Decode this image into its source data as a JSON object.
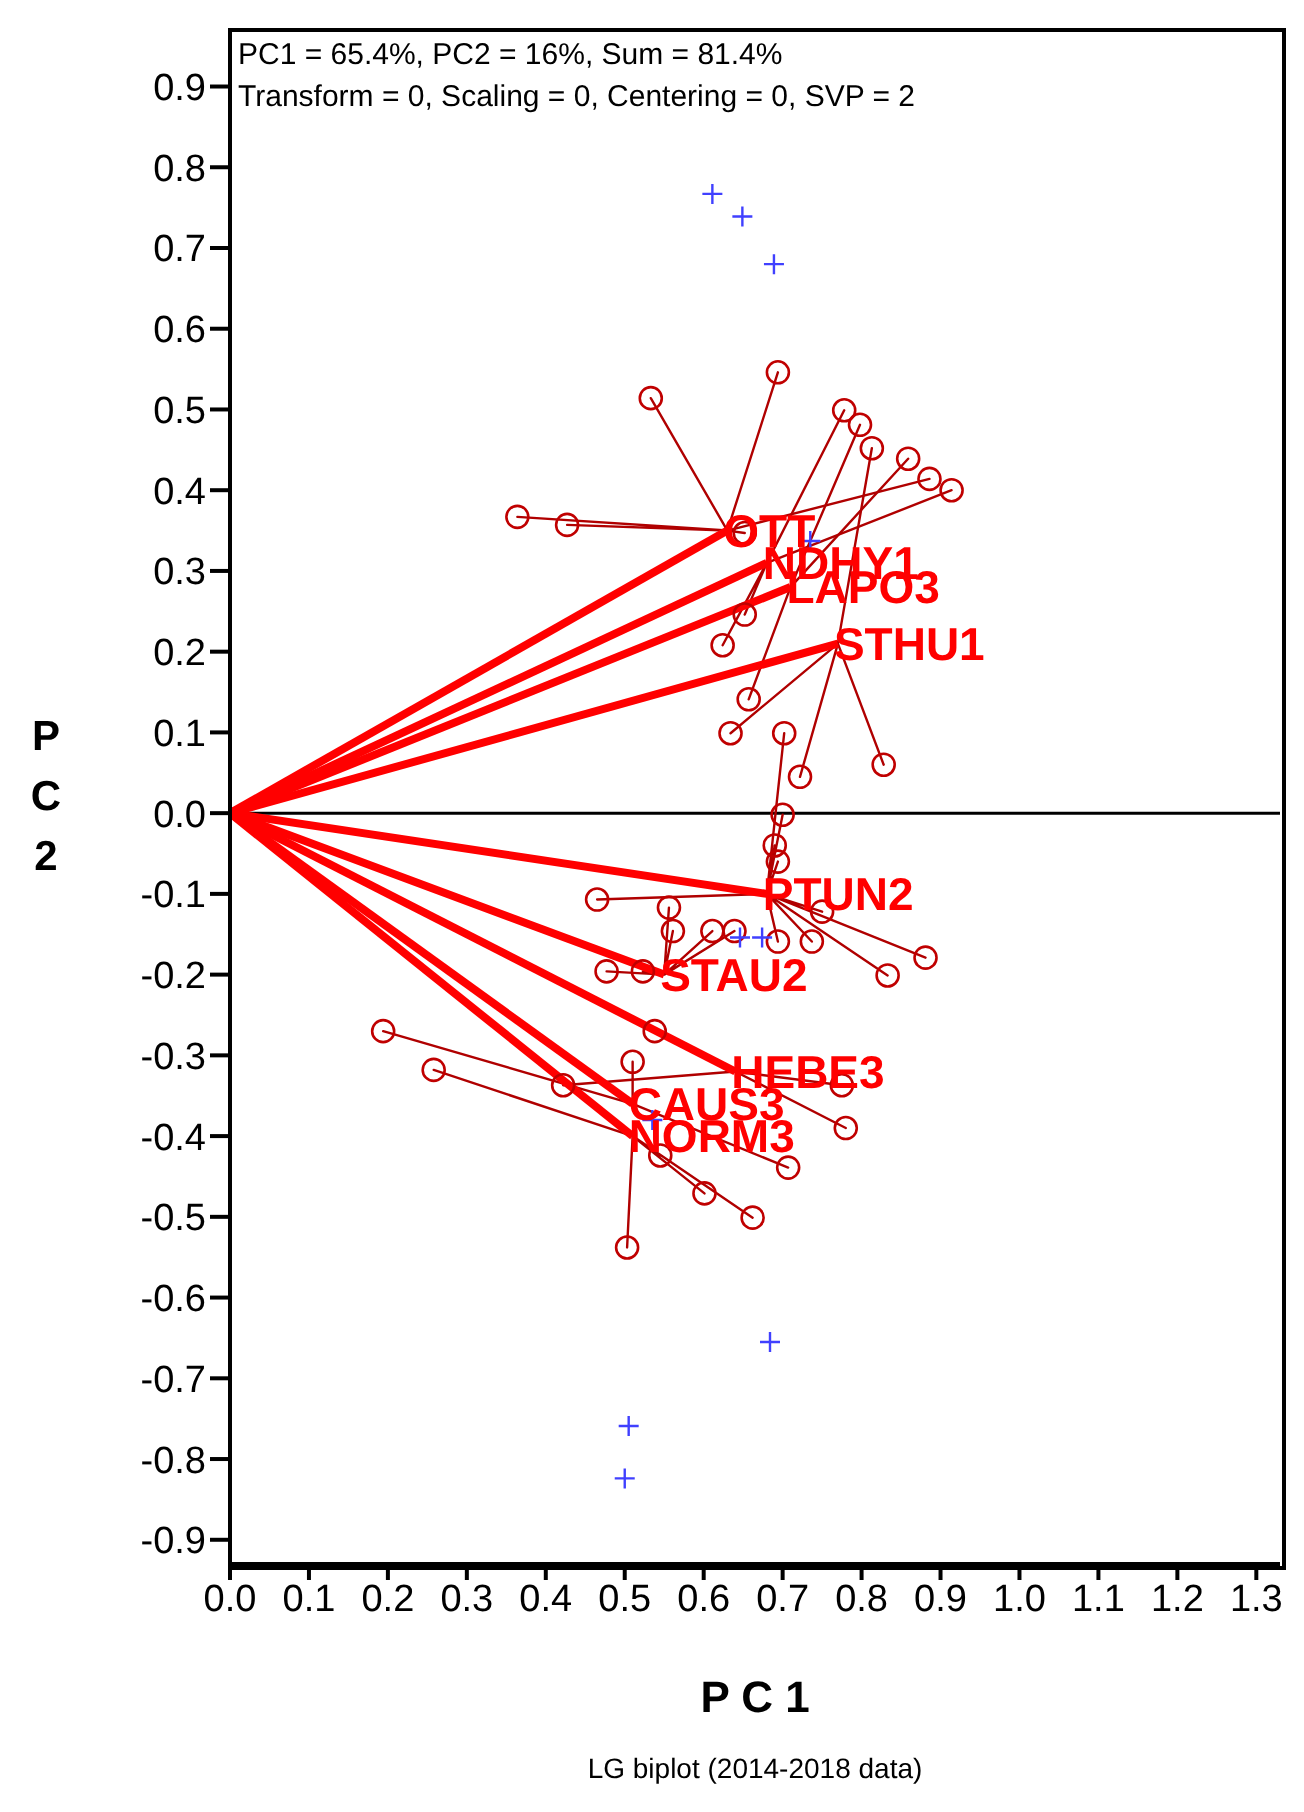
{
  "chart_data": {
    "type": "scatter",
    "xlabel": "P C 1",
    "ylabel": "P C 2",
    "xlim": [
      0,
      1.33
    ],
    "ylim": [
      -0.93,
      0.97
    ],
    "xticks": [
      {
        "value": 0,
        "label": "0.0"
      },
      0.1,
      0.2,
      0.3,
      0.4,
      0.5,
      0.6,
      0.7,
      0.8,
      0.9,
      {
        "value": 1,
        "label": "1.0"
      },
      1.1,
      1.2,
      1.3
    ],
    "yticks": [
      -0.9,
      -0.8,
      -0.7,
      -0.6,
      -0.5,
      -0.4,
      -0.3,
      -0.2,
      -0.1,
      {
        "value": 0,
        "label": "0.0"
      },
      0.1,
      0.2,
      0.3,
      0.4,
      0.5,
      0.6,
      0.7,
      0.8,
      0.9
    ],
    "grid": false,
    "legend": false,
    "ref_lines": [
      {
        "axis": "y",
        "value": 0,
        "color": "#000000"
      }
    ],
    "series": [
      {
        "type": "line",
        "color": "#b00000",
        "x": [
          0.63,
          0.694,
          0.63,
          0.533,
          0.63,
          0.364,
          0.63,
          0.427,
          0.63,
          0.652,
          0.63,
          0.886
        ],
        "values": [
          0.35,
          0.546,
          0.35,
          0.514,
          0.35,
          0.367,
          0.35,
          0.357,
          0.35,
          0.347,
          0.35,
          0.414
        ]
      },
      {
        "type": "line",
        "color": "#b00000",
        "x": [
          0.68,
          0.778,
          0.68,
          0.624,
          0.68,
          0.652,
          0.68,
          0.914
        ],
        "values": [
          0.31,
          0.499,
          0.31,
          0.208,
          0.31,
          0.246,
          0.31,
          0.4
        ]
      },
      {
        "type": "line",
        "color": "#b00000",
        "x": [
          0.71,
          0.798,
          0.71,
          0.859,
          0.71,
          0.657
        ],
        "values": [
          0.28,
          0.481,
          0.28,
          0.439,
          0.28,
          0.141
        ]
      },
      {
        "type": "line",
        "color": "#b00000",
        "x": [
          0.77,
          0.813,
          0.77,
          0.634,
          0.77,
          0.722,
          0.77,
          0.828
        ],
        "values": [
          0.21,
          0.452,
          0.21,
          0.099,
          0.21,
          0.045,
          0.21,
          0.06
        ]
      },
      {
        "type": "line",
        "color": "#b00000",
        "x": [
          0.68,
          0.702,
          0.68,
          0.7,
          0.68,
          0.69,
          0.68,
          0.694,
          0.68,
          0.833,
          0.68,
          0.881,
          0.68,
          0.75,
          0.68,
          0.737,
          0.68,
          0.465,
          0.68,
          0.694
        ],
        "values": [
          -0.1,
          0.099,
          -0.1,
          -0.002,
          -0.1,
          -0.04,
          -0.1,
          -0.06,
          -0.1,
          -0.201,
          -0.1,
          -0.179,
          -0.1,
          -0.122,
          -0.1,
          -0.159,
          -0.1,
          -0.107,
          -0.1,
          -0.159
        ]
      },
      {
        "type": "line",
        "color": "#b00000",
        "x": [
          0.55,
          0.556,
          0.55,
          0.561,
          0.55,
          0.611,
          0.55,
          0.639,
          0.55,
          0.477,
          0.55,
          0.523
        ],
        "values": [
          -0.2,
          -0.117,
          -0.2,
          -0.146,
          -0.2,
          -0.146,
          -0.2,
          -0.146,
          -0.2,
          -0.196,
          -0.2,
          -0.196
        ]
      },
      {
        "type": "line",
        "color": "#b00000",
        "x": [
          0.64,
          0.538,
          0.64,
          0.775,
          0.64,
          0.78,
          0.64,
          0.422
        ],
        "values": [
          -0.32,
          -0.27,
          -0.32,
          -0.337,
          -0.32,
          -0.39,
          -0.32,
          -0.337
        ]
      },
      {
        "type": "line",
        "color": "#b00000",
        "x": [
          0.51,
          0.194,
          0.51,
          0.51,
          0.51,
          0.707
        ],
        "values": [
          -0.36,
          -0.27,
          -0.36,
          -0.308,
          -0.36,
          -0.439
        ]
      },
      {
        "type": "line",
        "color": "#b00000",
        "x": [
          0.51,
          0.545,
          0.51,
          0.258,
          0.51,
          0.601,
          0.51,
          0.662,
          0.51,
          0.503
        ],
        "values": [
          -0.4,
          -0.424,
          -0.4,
          -0.318,
          -0.4,
          -0.471,
          -0.4,
          -0.501,
          -0.4,
          -0.538
        ]
      },
      {
        "type": "line",
        "color": "#ff0000",
        "x": [
          0,
          0.63
        ],
        "values": [
          0,
          0.35
        ]
      },
      {
        "type": "line",
        "color": "#ff0000",
        "x": [
          0,
          0.68
        ],
        "values": [
          0,
          0.31
        ]
      },
      {
        "type": "line",
        "color": "#ff0000",
        "x": [
          0,
          0.71
        ],
        "values": [
          0,
          0.28
        ]
      },
      {
        "type": "line",
        "color": "#ff0000",
        "x": [
          0,
          0.77
        ],
        "values": [
          0,
          0.21
        ]
      },
      {
        "type": "line",
        "color": "#ff0000",
        "x": [
          0,
          0.68
        ],
        "values": [
          0,
          -0.1
        ]
      },
      {
        "type": "line",
        "color": "#ff0000",
        "x": [
          0,
          0.55
        ],
        "values": [
          0,
          -0.2
        ]
      },
      {
        "type": "line",
        "color": "#ff0000",
        "x": [
          0,
          0.64
        ],
        "values": [
          0,
          -0.32
        ]
      },
      {
        "type": "line",
        "color": "#ff0000",
        "x": [
          0,
          0.51
        ],
        "values": [
          0,
          -0.36
        ]
      },
      {
        "type": "line",
        "color": "#ff0000",
        "x": [
          0,
          0.51
        ],
        "values": [
          0,
          -0.4
        ]
      },
      {
        "marker": "circle",
        "color": "#c00000",
        "x": [
          0.694,
          0.533,
          0.778,
          0.798,
          0.813,
          0.859,
          0.886,
          0.914,
          0.364,
          0.427,
          0.652,
          0.652,
          0.624,
          0.657,
          0.634,
          0.702,
          0.722,
          0.828,
          0.7,
          0.69,
          0.694,
          0.465,
          0.556,
          0.561,
          0.611,
          0.639,
          0.694,
          0.737,
          0.75,
          0.833,
          0.881,
          0.477,
          0.523,
          0.538,
          0.194,
          0.258,
          0.422,
          0.51,
          0.775,
          0.78,
          0.707,
          0.545,
          0.601,
          0.662,
          0.503
        ],
        "values": [
          0.546,
          0.514,
          0.499,
          0.481,
          0.452,
          0.439,
          0.414,
          0.4,
          0.367,
          0.357,
          0.347,
          0.246,
          0.208,
          0.141,
          0.099,
          0.099,
          0.045,
          0.06,
          -0.002,
          -0.04,
          -0.06,
          -0.107,
          -0.117,
          -0.146,
          -0.146,
          -0.146,
          -0.159,
          -0.159,
          -0.122,
          -0.201,
          -0.179,
          -0.196,
          -0.196,
          -0.27,
          -0.27,
          -0.318,
          -0.337,
          -0.308,
          -0.337,
          -0.39,
          -0.439,
          -0.424,
          -0.471,
          -0.501,
          -0.538
        ]
      },
      {
        "marker": "cross",
        "color": "#4040ff",
        "x": [
          0.611,
          0.649,
          0.689,
          0.735,
          0.646,
          0.674,
          0.535,
          0.684,
          0.505,
          0.5
        ],
        "values": [
          0.767,
          0.739,
          0.68,
          0.337,
          -0.154,
          -0.154,
          -0.38,
          -0.655,
          -0.759,
          -0.824
        ]
      }
    ],
    "annotations": [
      {
        "text": "OTT",
        "x": 0.63,
        "y": 0.35
      },
      {
        "text": "NDHY1",
        "x": 0.68,
        "y": 0.31
      },
      {
        "text": "LAPO3",
        "x": 0.71,
        "y": 0.28
      },
      {
        "text": "STHU1",
        "x": 0.77,
        "y": 0.21
      },
      {
        "text": "PTUN2",
        "x": 0.68,
        "y": -0.1
      },
      {
        "text": "STAU2",
        "x": 0.55,
        "y": -0.2
      },
      {
        "text": "HEBE3",
        "x": 0.64,
        "y": -0.32
      },
      {
        "text": "CAUS3",
        "x": 0.51,
        "y": -0.36
      },
      {
        "text": "NORM3",
        "x": 0.51,
        "y": -0.4
      },
      "PC1 = 65.4%, PC2 = 16%, Sum = 81.4%",
      "Transform = 0, Scaling = 0, Centering = 0, SVP = 2",
      "LG biplot (2014-2018 data)"
    ]
  }
}
